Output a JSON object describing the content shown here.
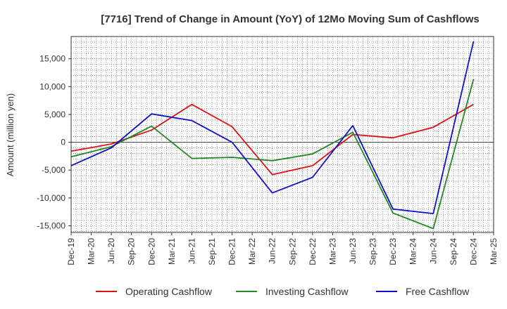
{
  "chart_data": {
    "type": "line",
    "title": "[7716]  Trend of Change in Amount (YoY) of 12Mo Moving Sum of Cashflows",
    "xlabel": "",
    "ylabel": "Amount (million yen)",
    "ylim": [
      -16200,
      19000
    ],
    "yticks": [
      -15000,
      -10000,
      -5000,
      0,
      5000,
      10000,
      15000
    ],
    "ytick_labels": [
      "-15,000",
      "-10,000",
      "-5,000",
      "0",
      "5,000",
      "10,000",
      "15,000"
    ],
    "categories": [
      "Dec-19",
      "Mar-20",
      "Jun-20",
      "Sep-20",
      "Dec-20",
      "Mar-21",
      "Jun-21",
      "Sep-21",
      "Dec-21",
      "Mar-22",
      "Jun-22",
      "Sep-22",
      "Dec-22",
      "Mar-23",
      "Jun-23",
      "Sep-23",
      "Dec-23",
      "Mar-24",
      "Jun-24",
      "Sep-24",
      "Dec-24",
      "Mar-25"
    ],
    "grid": true,
    "legend_position": "bottom",
    "series": [
      {
        "name": "Operating Cashflow",
        "color": "#dd1111",
        "points": [
          {
            "x": 0,
            "y": -1600
          },
          {
            "x": 2,
            "y": -300
          },
          {
            "x": 4,
            "y": 2200
          },
          {
            "x": 6,
            "y": 6800
          },
          {
            "x": 8,
            "y": 2800
          },
          {
            "x": 10,
            "y": -5800
          },
          {
            "x": 12,
            "y": -4200
          },
          {
            "x": 14,
            "y": 1400
          },
          {
            "x": 16,
            "y": 800
          },
          {
            "x": 18,
            "y": 2700
          },
          {
            "x": 20,
            "y": 6800
          }
        ]
      },
      {
        "name": "Investing Cashflow",
        "color": "#228822",
        "points": [
          {
            "x": 0,
            "y": -2600
          },
          {
            "x": 2,
            "y": -800
          },
          {
            "x": 4,
            "y": 2900
          },
          {
            "x": 6,
            "y": -2900
          },
          {
            "x": 8,
            "y": -2700
          },
          {
            "x": 10,
            "y": -3300
          },
          {
            "x": 12,
            "y": -2100
          },
          {
            "x": 14,
            "y": 1800
          },
          {
            "x": 16,
            "y": -12700
          },
          {
            "x": 18,
            "y": -15500
          },
          {
            "x": 20,
            "y": 11300
          }
        ]
      },
      {
        "name": "Free Cashflow",
        "color": "#1111cc",
        "points": [
          {
            "x": 0,
            "y": -4200
          },
          {
            "x": 2,
            "y": -1000
          },
          {
            "x": 4,
            "y": 5100
          },
          {
            "x": 6,
            "y": 3900
          },
          {
            "x": 8,
            "y": 0
          },
          {
            "x": 10,
            "y": -9100
          },
          {
            "x": 12,
            "y": -6300
          },
          {
            "x": 14,
            "y": 3000
          },
          {
            "x": 16,
            "y": -12000
          },
          {
            "x": 18,
            "y": -12800
          },
          {
            "x": 20,
            "y": 18100
          }
        ]
      }
    ]
  }
}
